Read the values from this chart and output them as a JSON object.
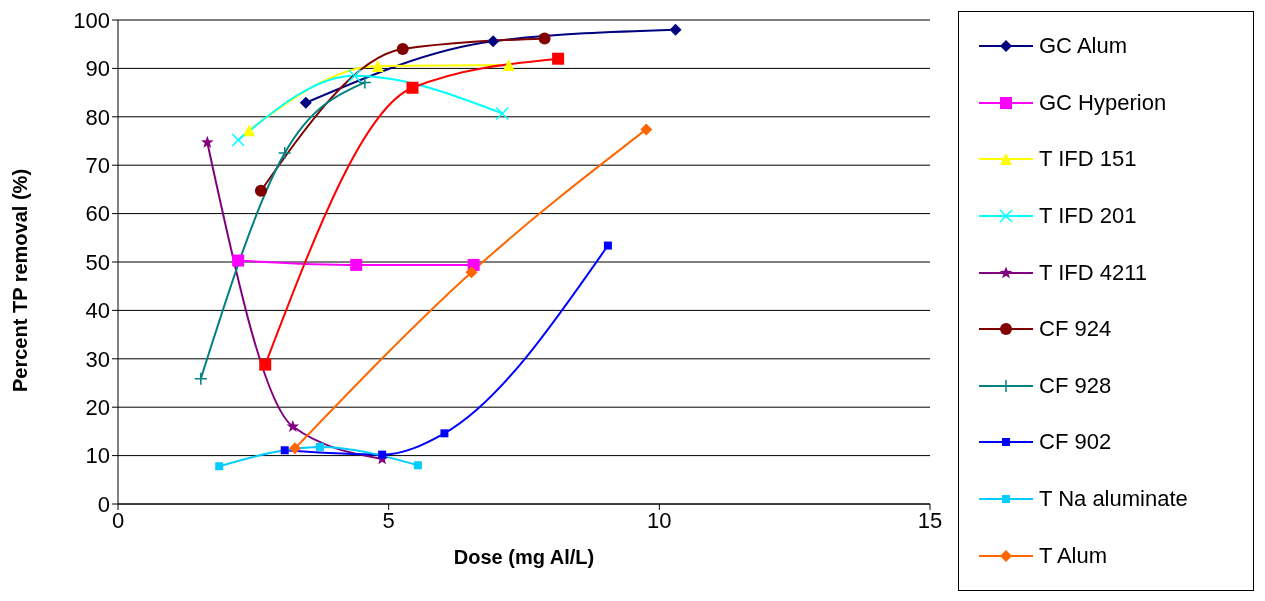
{
  "chart_data": {
    "type": "line",
    "xlabel": "Dose (mg Al/L)",
    "ylabel": "Percent TP removal (%)",
    "xlim": [
      0,
      15
    ],
    "xticks": [
      0,
      5,
      10,
      15
    ],
    "ylim": [
      0,
      100
    ],
    "yticks": [
      0,
      10,
      20,
      30,
      40,
      50,
      60,
      70,
      80,
      90,
      100
    ],
    "grid": "y",
    "legend": "right",
    "series": [
      {
        "name": "GC Alum",
        "color": "#000080",
        "marker": "diamond",
        "x": [
          3.47,
          6.93,
          10.3
        ],
        "values": [
          82.9,
          95.6,
          98.0
        ]
      },
      {
        "name": "GC Hyperion",
        "color": "#ff00ff",
        "marker": "square",
        "x": [
          2.22,
          4.4,
          6.57
        ],
        "values": [
          50.3,
          49.4,
          49.4
        ]
      },
      {
        "name": "T IFD 151",
        "color": "#ffff00",
        "marker": "triangle",
        "x": [
          2.42,
          4.8,
          7.22
        ],
        "values": [
          77.2,
          90.5,
          90.7
        ]
      },
      {
        "name": "T IFD 201",
        "color": "#00ffff",
        "marker": "cross",
        "x": [
          2.22,
          4.37,
          7.1
        ],
        "values": [
          75.2,
          88.5,
          80.7
        ]
      },
      {
        "name": "T IFD 4211",
        "color": "#800080",
        "marker": "star",
        "x": [
          1.65,
          3.23,
          4.88
        ],
        "values": [
          74.7,
          16.0,
          9.3
        ]
      },
      {
        "name": "CF 924",
        "color": "#800000",
        "marker": "circle",
        "x": [
          2.64,
          5.26,
          7.88
        ],
        "values": [
          64.7,
          94.0,
          96.2
        ]
      },
      {
        "name": "CF 928",
        "color": "#008080",
        "marker": "plus",
        "x": [
          1.53,
          3.08,
          4.56
        ],
        "values": [
          25.9,
          72.5,
          87.1
        ]
      },
      {
        "name": "CF 902",
        "color": "#0000ff",
        "marker": "square",
        "x": [
          3.08,
          4.88,
          6.03,
          9.05
        ],
        "values": [
          11.1,
          10.2,
          14.6,
          53.4
        ]
      },
      {
        "name": "T Na aluminate",
        "color": "#00ccff",
        "marker": "square",
        "x": [
          1.87,
          3.73,
          5.54
        ],
        "values": [
          7.8,
          11.8,
          8.0
        ]
      },
      {
        "name": "T Alum",
        "color": "#ff6600",
        "marker": "diamond",
        "x": [
          3.27,
          6.53,
          9.76
        ],
        "values": [
          11.5,
          47.9,
          77.4
        ]
      },
      {
        "color": "#ff0000",
        "marker": "square",
        "x": [
          2.72,
          5.44,
          8.13
        ],
        "values": [
          28.8,
          86.0,
          92.0
        ]
      }
    ]
  }
}
